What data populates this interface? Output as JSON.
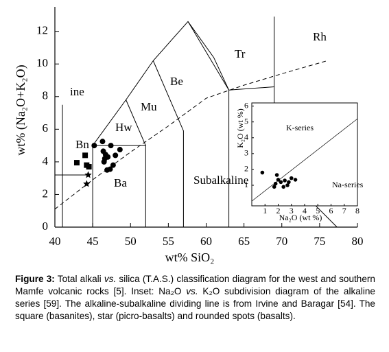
{
  "chart_data": [
    {
      "type": "scatter",
      "xlabel": "wt% SiO₂",
      "ylabel": "wt% (Na₂O+K₂O)",
      "xlim": [
        40,
        80
      ],
      "ylim": [
        0,
        13.5
      ],
      "xticks": [
        40,
        45,
        50,
        55,
        60,
        65,
        70,
        75,
        80
      ],
      "yticks": [
        0,
        2,
        4,
        6,
        8,
        10,
        12
      ],
      "annotations": [
        "ine",
        "Bn",
        "Hw",
        "Mu",
        "Be",
        "Tr",
        "Rh",
        "Ba",
        "Subalkaline"
      ],
      "boundaries": [
        {
          "x": [
            41,
            41
          ],
          "y": [
            0,
            7.5
          ],
          "dash": false
        },
        {
          "x": [
            45,
            45,
            52,
            52
          ],
          "y": [
            0,
            5,
            5,
            0
          ],
          "dash": false
        },
        {
          "x": [
            45,
            49.4,
            53,
            57.6,
            61,
            63
          ],
          "y": [
            5,
            7.8,
            10.2,
            12.6,
            10.4,
            8.4
          ],
          "dash": false
        },
        {
          "x": [
            49.4,
            52
          ],
          "y": [
            7.8,
            5
          ],
          "dash": false
        },
        {
          "x": [
            53,
            57,
            57
          ],
          "y": [
            10.2,
            5.9,
            0
          ],
          "dash": false
        },
        {
          "x": [
            57.6,
            63,
            63
          ],
          "y": [
            12.6,
            8.4,
            0
          ],
          "dash": false
        },
        {
          "x": [
            63,
            69,
            69
          ],
          "y": [
            8.4,
            8.6,
            12.9
          ],
          "dash": false
        },
        {
          "x": [
            69,
            69
          ],
          "y": [
            8.6,
            7.3
          ],
          "dash": false
        },
        {
          "x": [
            74.5,
            77.3
          ],
          "y": [
            1.3,
            0
          ],
          "dash": false
        },
        {
          "x": [
            40,
            45,
            50,
            55,
            60,
            65,
            70,
            76
          ],
          "y": [
            1.1,
            2.9,
            4.6,
            6.2,
            7.9,
            8.7,
            9.4,
            10.2
          ],
          "dash": true
        }
      ],
      "series": [
        {
          "marker": "square",
          "color": "#000000",
          "x": [
            42.9,
            44.0,
            44.2,
            44.5
          ],
          "values": [
            3.95,
            4.4,
            3.8,
            3.7
          ]
        },
        {
          "marker": "star",
          "color": "#000000",
          "x": [
            44.4,
            44.2
          ],
          "values": [
            3.2,
            2.65
          ]
        },
        {
          "marker": "circle",
          "color": "#000000",
          "x": [
            45.2,
            46.3,
            46.4,
            46.7,
            46.5,
            47.4,
            47.7,
            47.3,
            46.9,
            48.6,
            48.0,
            46.6,
            47.0
          ],
          "values": [
            5.0,
            5.25,
            4.65,
            4.45,
            4.0,
            5.0,
            3.8,
            3.55,
            3.5,
            4.75,
            4.4,
            4.2,
            4.3
          ]
        }
      ]
    },
    {
      "type": "scatter",
      "xlabel": "Na₂O (wt %)",
      "ylabel": "K₂O (wt %)",
      "xlim": [
        0,
        8
      ],
      "ylim": [
        -0.3,
        6.2
      ],
      "xticks": [
        1,
        2,
        3,
        4,
        5,
        6,
        7,
        8
      ],
      "yticks": [
        1,
        2,
        3,
        4,
        5,
        6
      ],
      "annotations": [
        "K-series",
        "Na-series"
      ],
      "boundaries": [
        {
          "x": [
            0,
            8
          ],
          "y": [
            0,
            5.2
          ],
          "dash": false
        }
      ],
      "series": [
        {
          "marker": "circle",
          "color": "#000000",
          "x": [
            0.8,
            1.9,
            2.0,
            1.8,
            2.2,
            2.5,
            2.8,
            3.0,
            2.7,
            3.3,
            2.4,
            1.7
          ],
          "values": [
            1.8,
            1.65,
            1.35,
            1.1,
            1.2,
            1.3,
            1.2,
            1.45,
            1.0,
            1.35,
            0.9,
            0.9
          ]
        }
      ]
    }
  ],
  "caption": {
    "label": "Figure 3:",
    "segments": [
      {
        "text": " Total alkali ",
        "italic": false
      },
      {
        "text": "vs.",
        "italic": true
      },
      {
        "text": " silica (T.A.S.) classification diagram for the west and southern Mamfe volcanic rocks [5]. Inset: Na₂O ",
        "italic": false
      },
      {
        "text": "vs.",
        "italic": true
      },
      {
        "text": " K₂O subdivision diagram of the alkaline series [59]. The alkaline-subalkaline dividing line is from Irvine and Baragar [54]. The square (basanites), star (picro-basalts) and rounded spots (basalts).",
        "italic": false
      }
    ]
  }
}
